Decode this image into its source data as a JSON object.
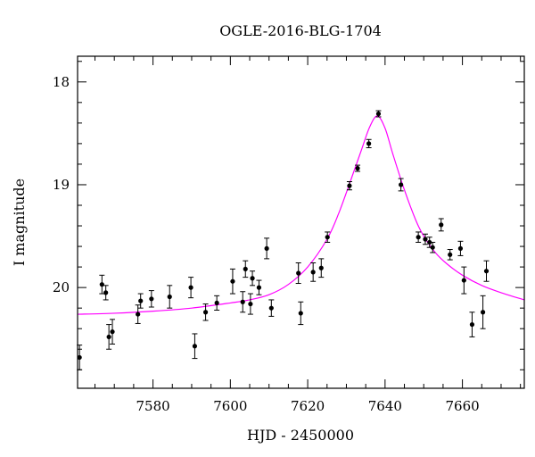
{
  "chart_data": {
    "type": "scatter",
    "title": "OGLE-2016-BLG-1704",
    "xlabel": "HJD - 2450000",
    "ylabel": "I magnitude",
    "xlim": [
      7560.5,
      7676
    ],
    "ylim": [
      20.98,
      17.75
    ],
    "y_inverted": true,
    "grid": false,
    "x_ticks": [
      7580,
      7600,
      7620,
      7640,
      7660
    ],
    "x_tick_labels": [
      "7580",
      "7600",
      "7620",
      "7640",
      "7660"
    ],
    "y_ticks": [
      18,
      19,
      20
    ],
    "y_tick_labels": [
      "18",
      "19",
      "20"
    ],
    "colors": {
      "model": "#ff00ff",
      "points": "#000000"
    },
    "series": [
      {
        "kind": "points",
        "x": [
          7561.0,
          7566.8,
          7567.8,
          7568.6,
          7569.5,
          7576.1,
          7576.8,
          7579.6,
          7584.3,
          7589.8,
          7590.8,
          7593.6,
          7596.5,
          7600.6,
          7603.2,
          7603.9,
          7605.2,
          7605.7,
          7607.4,
          7609.4,
          7610.6,
          7617.6,
          7618.2,
          7621.4,
          7623.5,
          7625.1,
          7630.8,
          7632.9,
          7635.8,
          7638.3,
          7644.1,
          7648.6,
          7650.4,
          7651.5,
          7652.3,
          7654.5,
          7656.8,
          7659.5,
          7660.4,
          7662.5,
          7665.3,
          7666.2
        ],
        "y": [
          20.68,
          19.97,
          20.05,
          20.48,
          20.43,
          20.26,
          20.13,
          20.11,
          20.09,
          20.0,
          20.57,
          20.24,
          20.15,
          19.94,
          20.14,
          19.82,
          20.16,
          19.91,
          20.0,
          19.62,
          20.2,
          19.86,
          20.25,
          19.85,
          19.81,
          19.51,
          19.01,
          18.84,
          18.6,
          18.31,
          19.0,
          19.51,
          19.53,
          19.56,
          19.61,
          19.39,
          19.68,
          19.62,
          19.93,
          20.36,
          20.24,
          19.84
        ],
        "yerr": [
          0.12,
          0.09,
          0.07,
          0.12,
          0.12,
          0.09,
          0.07,
          0.08,
          0.11,
          0.1,
          0.12,
          0.08,
          0.07,
          0.12,
          0.1,
          0.08,
          0.1,
          0.07,
          0.07,
          0.1,
          0.08,
          0.1,
          0.11,
          0.09,
          0.09,
          0.05,
          0.04,
          0.03,
          0.04,
          0.03,
          0.06,
          0.05,
          0.05,
          0.05,
          0.05,
          0.06,
          0.05,
          0.07,
          0.13,
          0.12,
          0.16,
          0.1
        ]
      },
      {
        "kind": "model",
        "x": [
          7560.5,
          7570,
          7580,
          7590,
          7600,
          7605,
          7610,
          7615,
          7620,
          7625,
          7628,
          7631,
          7634,
          7636,
          7638,
          7640,
          7642,
          7645,
          7648,
          7650,
          7653,
          7656,
          7660,
          7665,
          7670,
          7676
        ],
        "y": [
          20.26,
          20.25,
          20.23,
          20.2,
          20.15,
          20.12,
          20.07,
          19.97,
          19.8,
          19.53,
          19.28,
          18.97,
          18.65,
          18.44,
          18.33,
          18.45,
          18.7,
          19.05,
          19.35,
          19.5,
          19.66,
          19.77,
          19.88,
          19.98,
          20.05,
          20.12
        ]
      }
    ]
  }
}
